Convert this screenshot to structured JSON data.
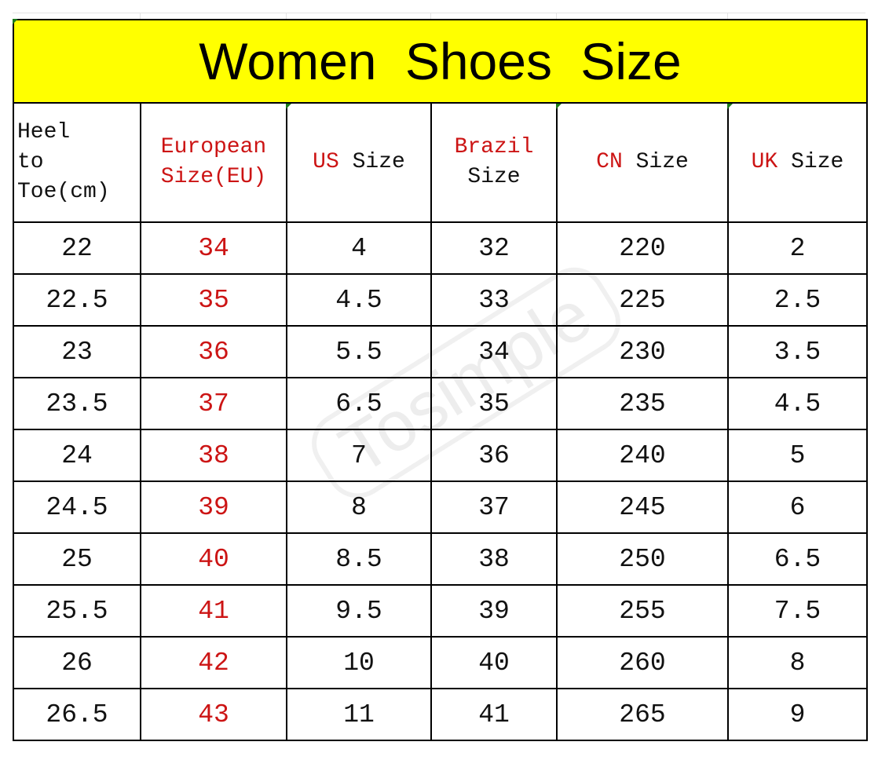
{
  "title": "Women Shoes Size",
  "watermark": "Tosimple",
  "colors": {
    "title_bg": "#ffff00",
    "accent_red": "#cc1414"
  },
  "headers": [
    {
      "red": "",
      "black": "Heel to Toe(cm)"
    },
    {
      "red": "European Size(EU)",
      "black": ""
    },
    {
      "red": "US",
      "black": "Size"
    },
    {
      "red": "Brazil",
      "black": "Size"
    },
    {
      "red": "CN",
      "black": "Size"
    },
    {
      "red": "UK",
      "black": "Size"
    }
  ],
  "rows": [
    [
      "22",
      "34",
      "4",
      "32",
      "220",
      "2"
    ],
    [
      "22.5",
      "35",
      "4.5",
      "33",
      "225",
      "2.5"
    ],
    [
      "23",
      "36",
      "5.5",
      "34",
      "230",
      "3.5"
    ],
    [
      "23.5",
      "37",
      "6.5",
      "35",
      "235",
      "4.5"
    ],
    [
      "24",
      "38",
      "7",
      "36",
      "240",
      "5"
    ],
    [
      "24.5",
      "39",
      "8",
      "37",
      "245",
      "6"
    ],
    [
      "25",
      "40",
      "8.5",
      "38",
      "250",
      "6.5"
    ],
    [
      "25.5",
      "41",
      "9.5",
      "39",
      "255",
      "7.5"
    ],
    [
      "26",
      "42",
      "10",
      "40",
      "260",
      "8"
    ],
    [
      "26.5",
      "43",
      "11",
      "41",
      "265",
      "9"
    ]
  ]
}
